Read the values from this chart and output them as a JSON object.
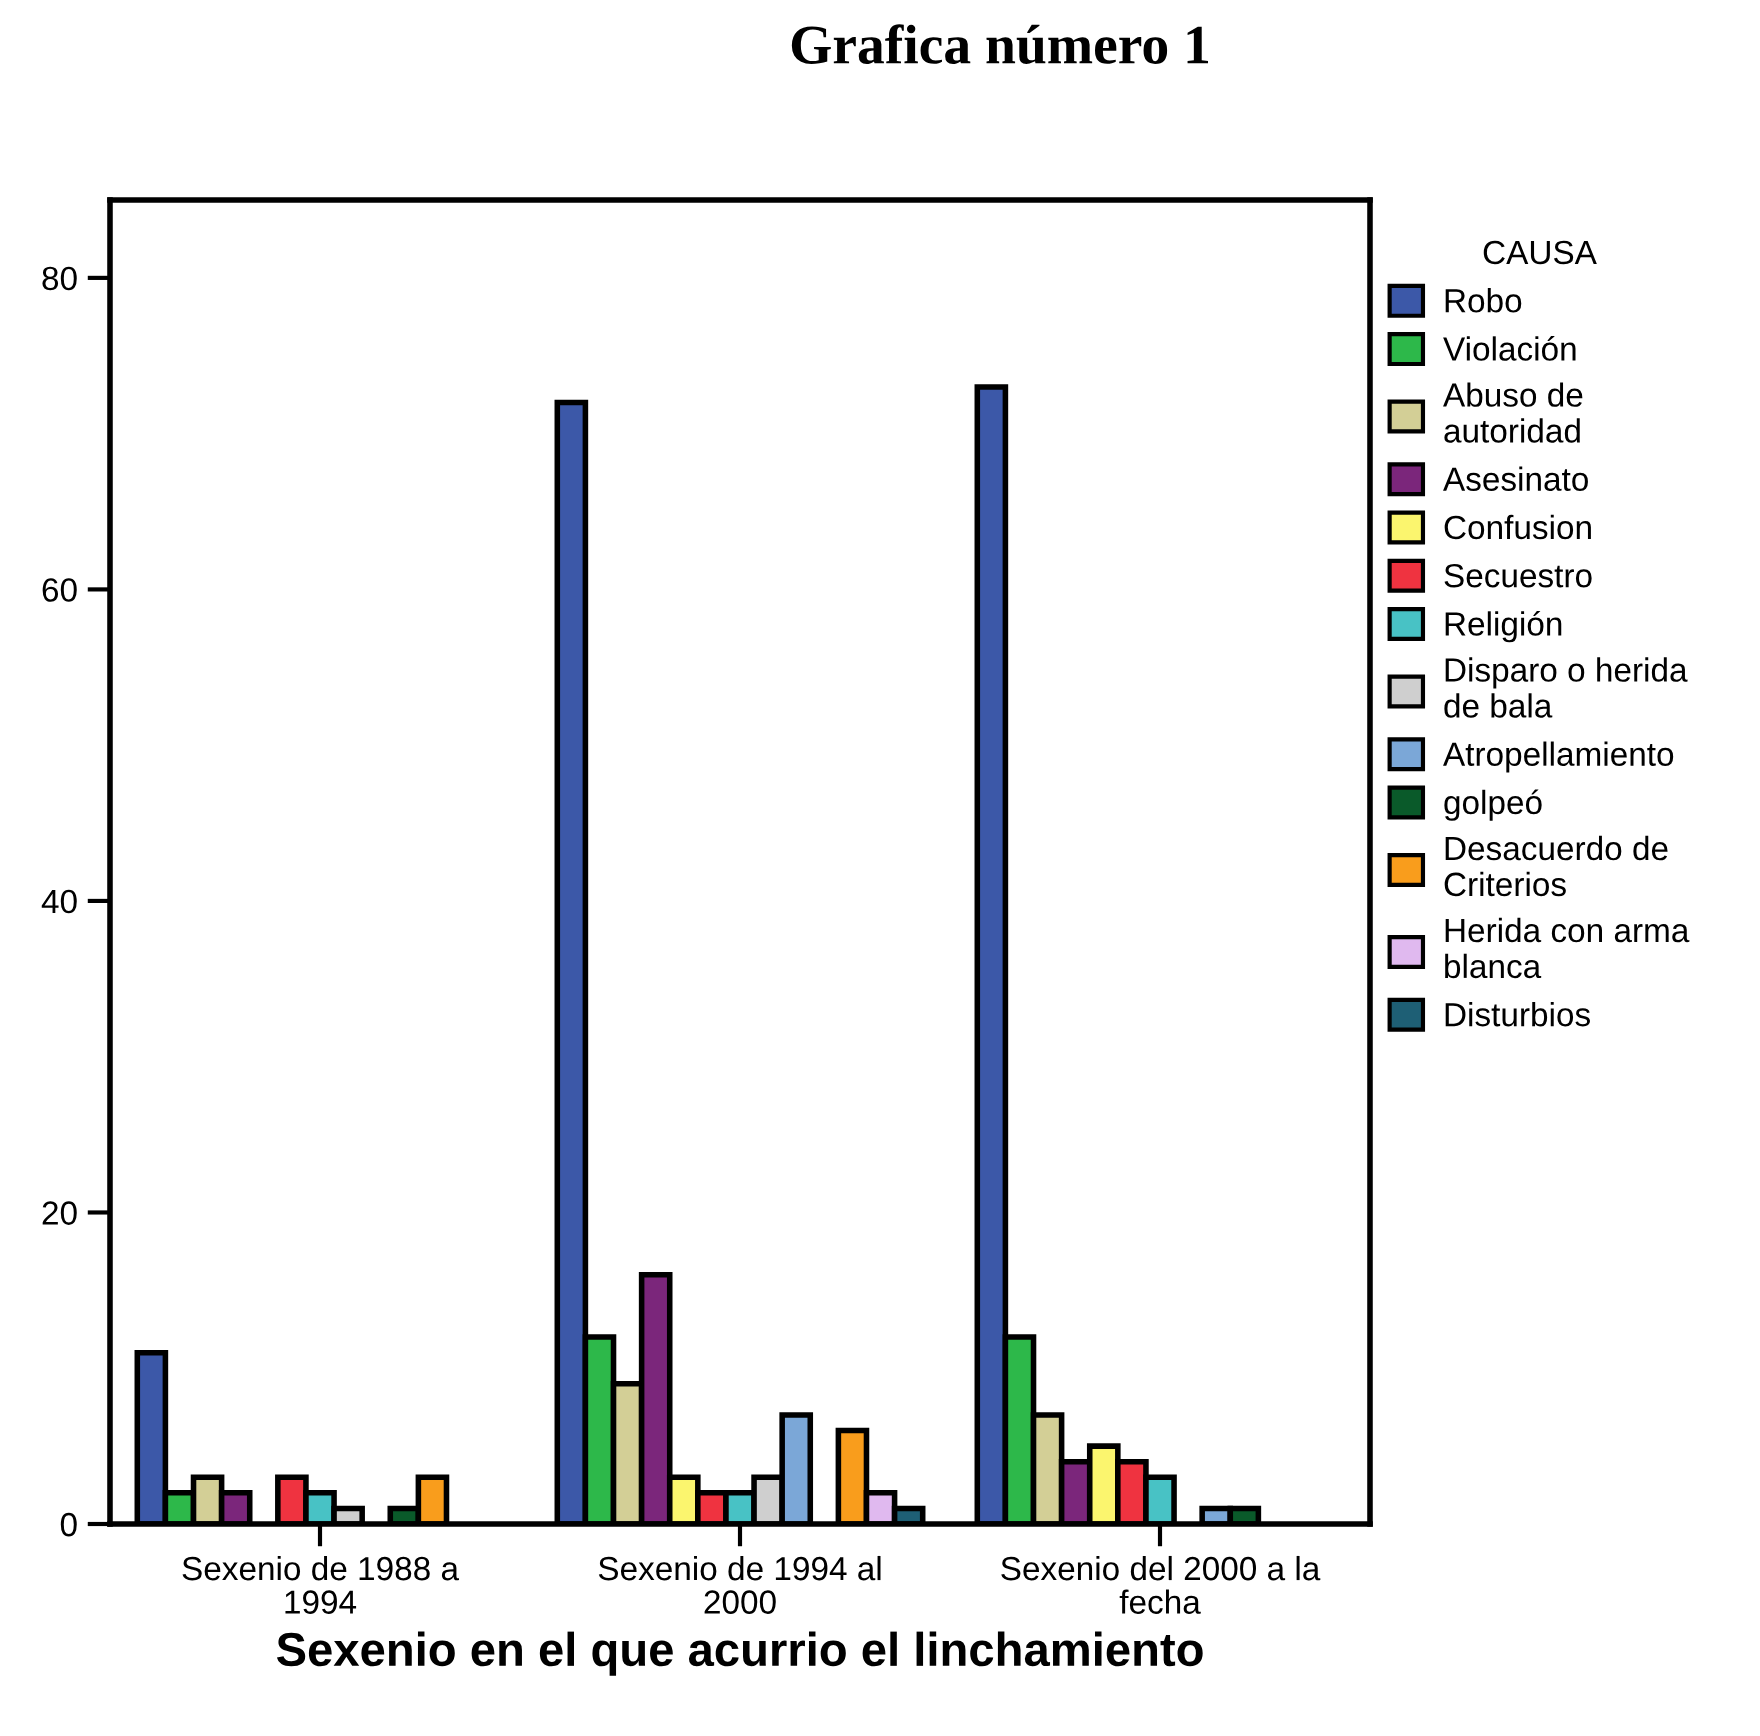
{
  "chart_data": {
    "type": "bar",
    "title": "Grafica número 1",
    "xlabel": "Sexenio en el que acurrio el linchamiento",
    "legend_title": "CAUSA",
    "legend": "right",
    "grid": false,
    "categories": [
      "Sexenio de 1988 a\n1994",
      "Sexenio de 1994 al\n2000",
      "Sexenio del 2000 a la\nfecha"
    ],
    "ylim": [
      0,
      85
    ],
    "yticks": [
      0,
      20,
      40,
      60,
      80
    ],
    "series": [
      {
        "name": "Robo",
        "color": "#3c58a8",
        "values": [
          11,
          72,
          73
        ]
      },
      {
        "name": "Violación",
        "color": "#2db84a",
        "values": [
          2,
          12,
          12
        ]
      },
      {
        "name": "Abuso de\nautoridad",
        "color": "#d3cf96",
        "values": [
          3,
          9,
          7
        ]
      },
      {
        "name": "Asesinato",
        "color": "#7b267b",
        "values": [
          2,
          16,
          4
        ]
      },
      {
        "name": "Confusion",
        "color": "#fbf56e",
        "values": [
          null,
          3,
          5
        ]
      },
      {
        "name": "Secuestro",
        "color": "#ef3340",
        "values": [
          3,
          2,
          4
        ]
      },
      {
        "name": "Religión",
        "color": "#48c2c5",
        "values": [
          2,
          2,
          3
        ]
      },
      {
        "name": "Disparo o herida\nde bala",
        "color": "#cfcfcf",
        "values": [
          1,
          3,
          null
        ]
      },
      {
        "name": "Atropellamiento",
        "color": "#7ba7d7",
        "values": [
          null,
          7,
          1
        ]
      },
      {
        "name": "golpeó",
        "color": "#0a5a2a",
        "values": [
          1,
          null,
          1
        ]
      },
      {
        "name": "Desacuerdo de\nCriterios",
        "color": "#f99d1c",
        "values": [
          3,
          6,
          null
        ]
      },
      {
        "name": "Herida con arma\nblanca",
        "color": "#e0b9ef",
        "values": [
          null,
          2,
          null
        ]
      },
      {
        "name": "Disturbios",
        "color": "#1e5f75",
        "values": [
          null,
          1,
          null
        ]
      }
    ]
  }
}
